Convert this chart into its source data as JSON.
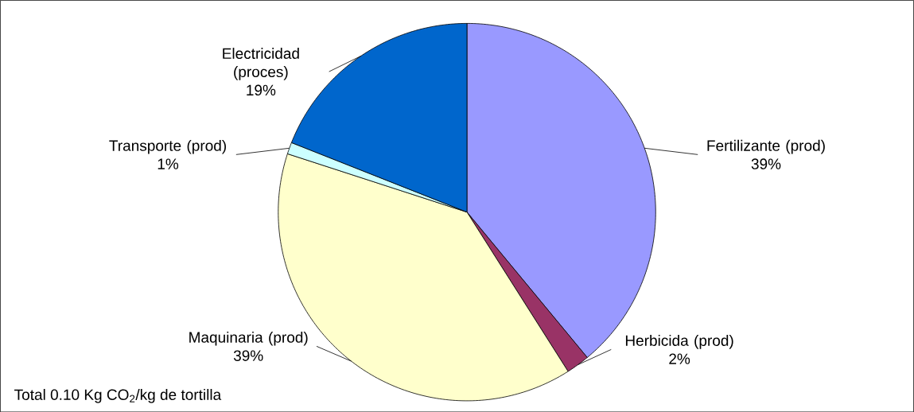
{
  "chart_data": {
    "type": "pie",
    "categories": [
      "Fertilizante (prod)",
      "Herbicida (prod)",
      "Maquinaria (prod)",
      "Transporte (prod)",
      "Electricidad (proces)"
    ],
    "values": [
      39,
      2,
      39,
      1,
      19
    ],
    "value_labels": [
      "39%",
      "2%",
      "39%",
      "1%",
      "19%"
    ],
    "colors": [
      "#9999ff",
      "#993366",
      "#ffffcc",
      "#ccffff",
      "#0066cc"
    ],
    "annotations": [
      "Total 0.10 Kg CO$_{2}$/kg de tortilla"
    ]
  }
}
